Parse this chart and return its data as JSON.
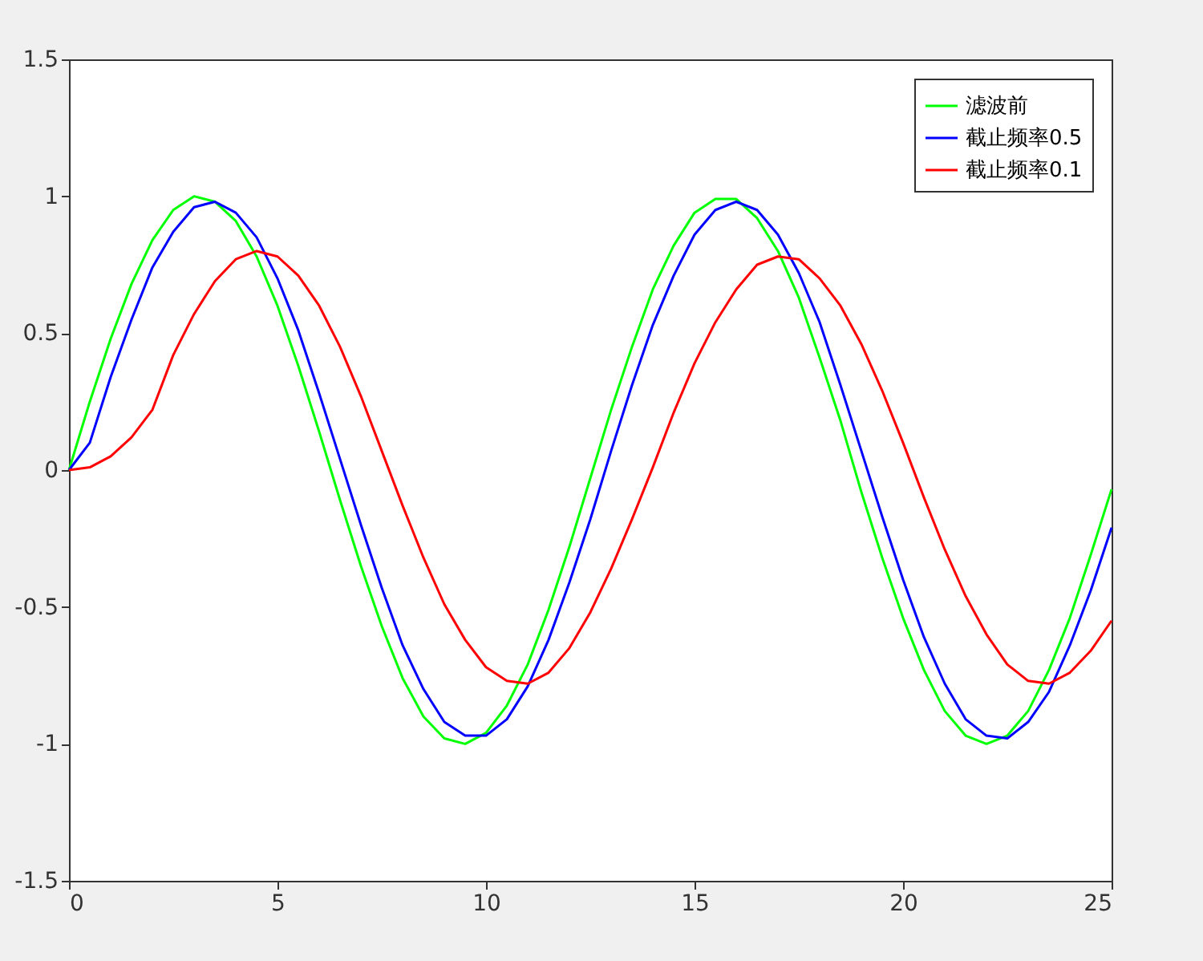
{
  "chart_data": {
    "type": "line",
    "x": [
      0,
      0.5,
      1,
      1.5,
      2,
      2.5,
      3,
      3.5,
      4,
      4.5,
      5,
      5.5,
      6,
      6.5,
      7,
      7.5,
      8,
      8.5,
      9,
      9.5,
      10,
      10.5,
      11,
      11.5,
      12,
      12.5,
      13,
      13.5,
      14,
      14.5,
      15,
      15.5,
      16,
      16.5,
      17,
      17.5,
      18,
      18.5,
      19,
      19.5,
      20,
      20.5,
      21,
      21.5,
      22,
      22.5,
      23,
      23.5,
      24,
      24.5,
      25
    ],
    "series": [
      {
        "name": "滤波前",
        "color": "#00ff00",
        "values": [
          0,
          0.25,
          0.48,
          0.68,
          0.84,
          0.95,
          1.0,
          0.98,
          0.91,
          0.78,
          0.6,
          0.38,
          0.14,
          -0.11,
          -0.35,
          -0.57,
          -0.76,
          -0.9,
          -0.98,
          -1.0,
          -0.96,
          -0.86,
          -0.71,
          -0.51,
          -0.28,
          -0.03,
          0.22,
          0.45,
          0.66,
          0.82,
          0.94,
          0.99,
          0.99,
          0.92,
          0.8,
          0.63,
          0.41,
          0.18,
          -0.08,
          -0.32,
          -0.54,
          -0.73,
          -0.88,
          -0.97,
          -1.0,
          -0.97,
          -0.88,
          -0.73,
          -0.54,
          -0.31,
          -0.07
        ]
      },
      {
        "name": "截止频率0.5",
        "color": "#0000ff",
        "values": [
          0,
          0.1,
          0.34,
          0.55,
          0.74,
          0.87,
          0.96,
          0.98,
          0.94,
          0.85,
          0.7,
          0.51,
          0.28,
          0.04,
          -0.2,
          -0.43,
          -0.64,
          -0.8,
          -0.92,
          -0.97,
          -0.97,
          -0.91,
          -0.79,
          -0.62,
          -0.41,
          -0.18,
          0.07,
          0.31,
          0.53,
          0.71,
          0.86,
          0.95,
          0.98,
          0.95,
          0.86,
          0.72,
          0.54,
          0.31,
          0.07,
          -0.17,
          -0.4,
          -0.61,
          -0.78,
          -0.91,
          -0.97,
          -0.98,
          -0.92,
          -0.81,
          -0.64,
          -0.44,
          -0.21
        ]
      },
      {
        "name": "截止频率0.1",
        "color": "#ff0000",
        "values": [
          0,
          0.01,
          0.05,
          0.12,
          0.22,
          0.42,
          0.57,
          0.69,
          0.77,
          0.8,
          0.78,
          0.71,
          0.6,
          0.45,
          0.27,
          0.07,
          -0.13,
          -0.32,
          -0.49,
          -0.62,
          -0.72,
          -0.77,
          -0.78,
          -0.74,
          -0.65,
          -0.52,
          -0.36,
          -0.18,
          0.01,
          0.21,
          0.39,
          0.54,
          0.66,
          0.75,
          0.78,
          0.77,
          0.7,
          0.6,
          0.46,
          0.29,
          0.1,
          -0.1,
          -0.29,
          -0.46,
          -0.6,
          -0.71,
          -0.77,
          -0.78,
          -0.74,
          -0.66,
          -0.55
        ]
      }
    ],
    "xlim": [
      0,
      25
    ],
    "xticks": [
      0,
      5,
      10,
      15,
      20,
      25
    ],
    "ylim": [
      -1.5,
      1.5
    ],
    "yticks": [
      -1.5,
      -1,
      -0.5,
      0,
      0.5,
      1,
      1.5
    ],
    "legend": "top right",
    "line_style": "solid",
    "marker": "none"
  }
}
